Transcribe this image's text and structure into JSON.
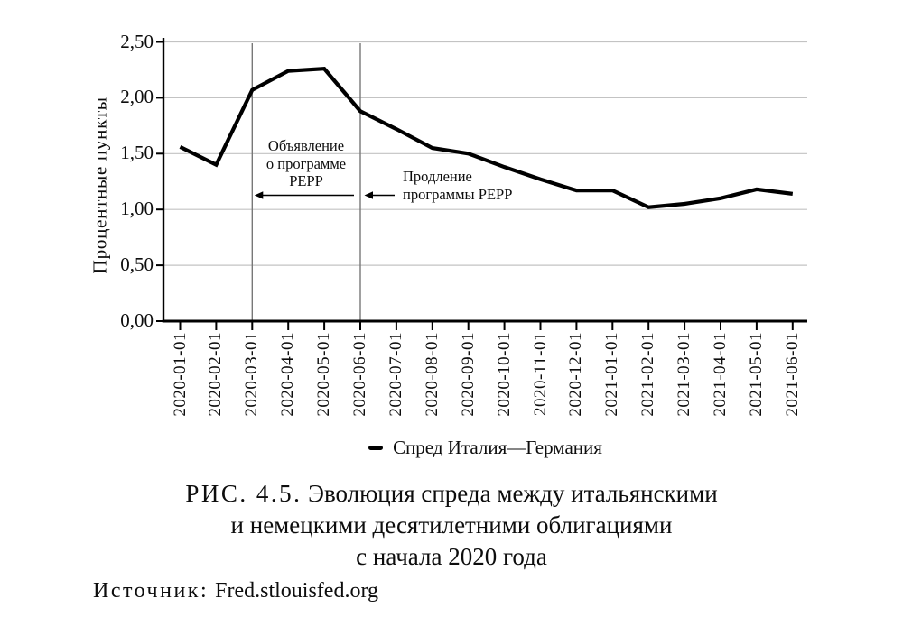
{
  "chart_data": {
    "type": "line",
    "title": "",
    "ylabel": "Процентные пункты",
    "xlabel": "",
    "x": [
      "2020-01-01",
      "2020-02-01",
      "2020-03-01",
      "2020-04-01",
      "2020-05-01",
      "2020-06-01",
      "2020-07-01",
      "2020-08-01",
      "2020-09-01",
      "2020-10-01",
      "2020-11-01",
      "2020-12-01",
      "2021-01-01",
      "2021-02-01",
      "2021-03-01",
      "2021-04-01",
      "2021-05-01",
      "2021-06-01"
    ],
    "series": [
      {
        "name": "Спред Италия—Германия",
        "values": [
          1.56,
          1.4,
          2.07,
          2.24,
          2.26,
          1.88,
          1.72,
          1.55,
          1.5,
          1.38,
          1.27,
          1.17,
          1.17,
          1.02,
          1.05,
          1.1,
          1.18,
          1.14
        ]
      }
    ],
    "ylim": [
      0,
      2.5
    ],
    "y_ticks": [
      {
        "value": 0.0,
        "label": "0,00"
      },
      {
        "value": 0.5,
        "label": "0,50"
      },
      {
        "value": 1.0,
        "label": "1,00"
      },
      {
        "value": 1.5,
        "label": "1,50"
      },
      {
        "value": 2.0,
        "label": "2,00"
      },
      {
        "value": 2.5,
        "label": "2,50"
      }
    ],
    "grid": true,
    "legend_position": "bottom",
    "line_color": "#000000",
    "gridline_color": "#c3c3c3",
    "event_line_color": "#787878",
    "annotations": [
      {
        "x": "2020-03-01",
        "x_index": 2,
        "lines": [
          "Объявление",
          "о программе",
          "PEPP"
        ]
      },
      {
        "x": "2020-06-01",
        "x_index": 5,
        "lines": [
          "Продление",
          "программы PEPP"
        ]
      }
    ]
  },
  "caption": {
    "label": "РИС. 4.5.",
    "line1": "Эволюция спреда между итальянскими",
    "line2": "и немецкими десятилетними облигациями",
    "line3": "с начала 2020 года"
  },
  "source": {
    "label": "Источник:",
    "value": "Fred.stlouisfed.org"
  }
}
